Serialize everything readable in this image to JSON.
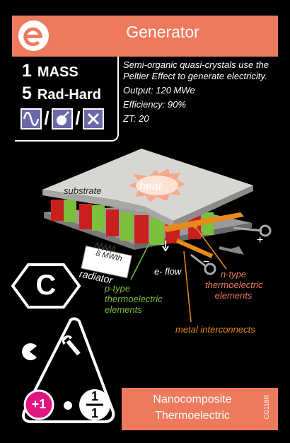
{
  "card": {
    "title": "Generator",
    "logo_icon": "e-logo-icon",
    "colors": {
      "header": "#ee7a5e",
      "purple": "#6b6aa8",
      "green": "#7bbf3a",
      "orange": "#e88b1a",
      "magenta": "#e0157f"
    },
    "stats": [
      {
        "number": "1",
        "label": "MASS"
      },
      {
        "number": "5",
        "label": "Rad-Hard"
      }
    ],
    "type_icons": [
      "sine-wave-icon",
      "bomb-icon",
      "x-icon"
    ],
    "description": [
      "Semi-organic quasi-crystals use the Peltier Effect to generate electricity.",
      "Output: 120 MWe",
      "Efficiency: 90%",
      "ZT: 20"
    ],
    "diagram": {
      "substrate": "substrate",
      "heat": "heat",
      "radiator_line1": "8 MWth",
      "radiator_line2": "radiator",
      "e_flow": "e- flow",
      "p_type": "p-type thermoelectric elements",
      "n_type": "n-type thermoelectric elements",
      "interconnects": "metal interconnects",
      "plus": "+",
      "minus": "−"
    },
    "spectral_type": "C",
    "support_icons": [
      "pacman-icon",
      "wrench-icon"
    ],
    "bonus": "+1",
    "fraction": {
      "top": "1",
      "bottom": "1"
    },
    "subtitle_line1": "Nanocomposite",
    "subtitle_line2": "Thermoelectric",
    "card_code": "CG118R"
  }
}
